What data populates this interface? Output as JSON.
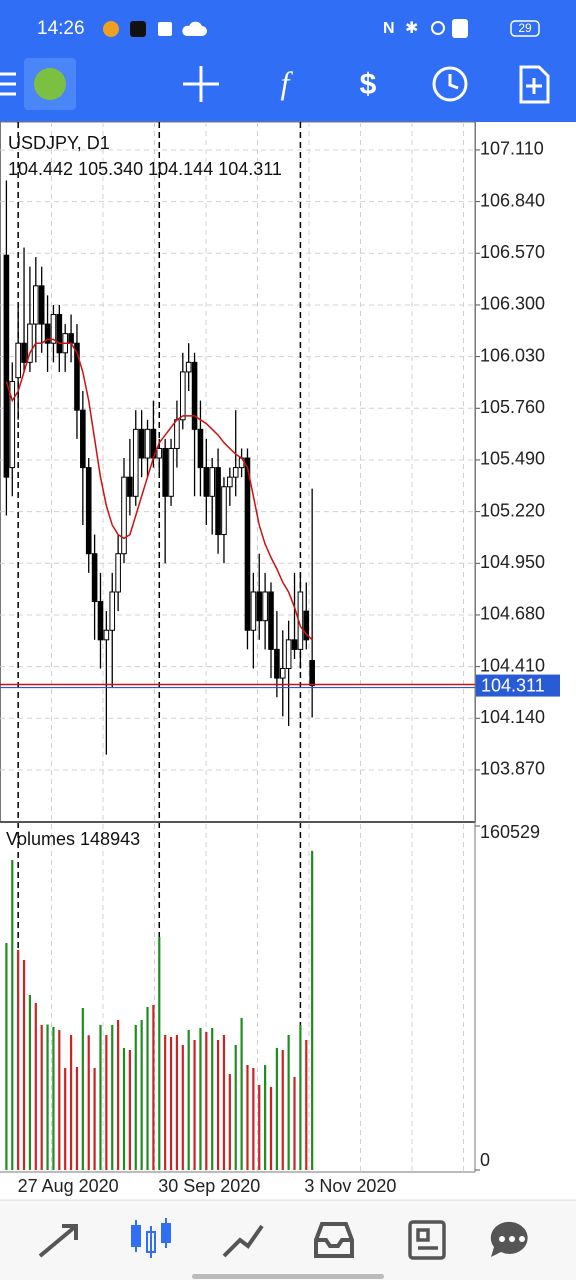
{
  "status_bar": {
    "time": "14:26",
    "battery": "29"
  },
  "chart_data": [
    {
      "type": "candlestick",
      "title": "USDJPY, D1",
      "ohlc_text": "104.442 105.340 104.144 104.311",
      "categories": [
        null,
        null,
        "27 Aug 2020",
        null,
        null,
        null,
        null,
        null,
        null,
        null,
        null,
        null,
        null,
        null,
        null,
        null,
        null,
        null,
        null,
        null,
        null,
        null,
        null,
        null,
        null,
        null,
        "30 Sep 2020",
        null,
        null,
        null,
        null,
        null,
        null,
        null,
        null,
        null,
        null,
        null,
        null,
        null,
        null,
        null,
        null,
        null,
        null,
        null,
        null,
        null,
        null,
        null,
        "3 Nov 2020",
        null,
        null
      ],
      "open": [
        106.56,
        105.45,
        105.92,
        106.1,
        106.0,
        106.2,
        106.4,
        106.2,
        106.1,
        106.25,
        106.05,
        106.15,
        106.1,
        105.75,
        105.45,
        105.0,
        104.75,
        104.55,
        104.6,
        104.8,
        105.0,
        105.4,
        105.3,
        105.65,
        105.5,
        105.65,
        105.5,
        105.55,
        105.3,
        105.55,
        105.7,
        105.95,
        106.0,
        105.65,
        105.45,
        105.3,
        105.45,
        105.1,
        105.35,
        105.4,
        105.45,
        105.5,
        104.6,
        104.8,
        104.65,
        104.8,
        104.5,
        104.35,
        104.4,
        104.55,
        104.5,
        104.7,
        104.442
      ],
      "high": [
        106.95,
        106.0,
        106.3,
        106.6,
        106.5,
        106.55,
        106.5,
        106.35,
        106.3,
        106.3,
        106.2,
        106.25,
        106.2,
        105.85,
        105.5,
        105.1,
        104.9,
        104.7,
        104.9,
        105.1,
        105.5,
        105.6,
        105.75,
        105.75,
        105.7,
        105.8,
        105.6,
        105.6,
        105.6,
        105.8,
        106.05,
        106.1,
        106.05,
        105.8,
        105.6,
        105.5,
        105.55,
        105.4,
        105.45,
        105.75,
        105.55,
        105.55,
        104.9,
        105.0,
        104.9,
        104.85,
        104.7,
        104.6,
        104.65,
        104.9,
        104.9,
        104.85,
        105.34
      ],
      "low": [
        105.2,
        105.3,
        105.7,
        105.95,
        105.95,
        106.0,
        106.05,
        105.95,
        106.0,
        105.95,
        105.95,
        106.0,
        105.6,
        105.15,
        104.9,
        104.55,
        104.4,
        103.95,
        104.3,
        104.7,
        104.95,
        105.2,
        105.25,
        105.4,
        105.4,
        105.45,
        105.4,
        104.95,
        105.25,
        105.45,
        105.65,
        105.85,
        105.3,
        105.3,
        105.15,
        105.1,
        105.0,
        104.95,
        105.25,
        105.3,
        105.4,
        104.5,
        104.4,
        104.55,
        104.5,
        104.35,
        104.25,
        104.15,
        104.1,
        104.45,
        104.4,
        104.5,
        104.144
      ],
      "close": [
        105.4,
        105.9,
        106.1,
        106.0,
        106.2,
        106.4,
        106.2,
        106.1,
        106.25,
        106.05,
        106.15,
        106.1,
        105.75,
        105.45,
        105.0,
        104.75,
        104.55,
        104.6,
        104.8,
        105.0,
        105.4,
        105.3,
        105.65,
        105.5,
        105.65,
        105.5,
        105.55,
        105.3,
        105.55,
        105.7,
        105.95,
        106.0,
        105.65,
        105.45,
        105.3,
        105.45,
        105.1,
        105.35,
        105.4,
        105.45,
        105.5,
        104.6,
        104.8,
        104.65,
        104.8,
        104.5,
        104.35,
        104.4,
        104.55,
        104.5,
        104.8,
        104.55,
        104.311
      ],
      "ma_values": [
        105.9,
        105.8,
        105.85,
        105.95,
        106.05,
        106.1,
        106.1,
        106.12,
        106.12,
        106.1,
        106.1,
        106.1,
        106.05,
        105.95,
        105.8,
        105.6,
        105.4,
        105.25,
        105.15,
        105.1,
        105.08,
        105.1,
        105.2,
        105.3,
        105.4,
        105.5,
        105.58,
        105.62,
        105.66,
        105.7,
        105.72,
        105.72,
        105.72,
        105.7,
        105.68,
        105.65,
        105.62,
        105.58,
        105.55,
        105.52,
        105.5,
        105.45,
        105.3,
        105.15,
        105.05,
        104.98,
        104.92,
        104.85,
        104.8,
        104.72,
        104.62,
        104.58,
        104.55
      ],
      "ma_color": "#cc1111",
      "up_color": "#ffffff",
      "down_color": "#000000",
      "wick_color": "#000000",
      "bid": 104.311,
      "bid_color": "#cc1111",
      "ask_color": "#2a5bd7",
      "ylim": [
        103.598,
        107.256
      ],
      "yticks": [
        {
          "value": 107.11,
          "label": "107.110"
        },
        {
          "value": 106.84,
          "label": "106.840"
        },
        {
          "value": 106.57,
          "label": "106.570"
        },
        {
          "value": 106.3,
          "label": "106.300"
        },
        {
          "value": 106.03,
          "label": "106.030"
        },
        {
          "value": 105.76,
          "label": "105.760"
        },
        {
          "value": 105.49,
          "label": "105.490"
        },
        {
          "value": 105.22,
          "label": "105.220"
        },
        {
          "value": 104.95,
          "label": "104.950"
        },
        {
          "value": 104.68,
          "label": "104.680"
        },
        {
          "value": 104.41,
          "label": "104.410"
        },
        {
          "value": 104.14,
          "label": "104.140"
        },
        {
          "value": 103.87,
          "label": "103.870"
        }
      ],
      "grid": true
    },
    {
      "type": "volume",
      "title": "Volumes 148943",
      "values": [
        105930,
        144662,
        102663,
        97997,
        81664,
        77931,
        67664,
        67900,
        66731,
        65331,
        47598,
        62998,
        48065,
        75597,
        62900,
        47600,
        67700,
        63000,
        67660,
        70000,
        56930,
        56000,
        67650,
        70010,
        76060,
        77000,
        108730,
        63010,
        62060,
        62990,
        58330,
        65330,
        60660,
        66260,
        64400,
        66270,
        60670,
        63020,
        44800,
        58330,
        70930,
        49000,
        47590,
        39670,
        49010,
        38730,
        56930,
        56010,
        63000,
        43400,
        67670,
        60660,
        148943
      ],
      "colors": [
        "#1e8c1e",
        "#1e8c1e",
        "#cc2222",
        "#cc2222",
        "#1e8c1e",
        "#cc2222",
        "#cc2222",
        "#1e8c1e",
        "#1e8c1e",
        "#cc2222",
        "#cc2222",
        "#cc2222",
        "#cc2222",
        "#1e8c1e",
        "#cc2222",
        "#cc2222",
        "#1e8c1e",
        "#cc2222",
        "#1e8c1e",
        "#cc2222",
        "#1e8c1e",
        "#cc2222",
        "#1e8c1e",
        "#1e8c1e",
        "#1e8c1e",
        "#cc2222",
        "#1e8c1e",
        "#cc2222",
        "#cc2222",
        "#cc2222",
        "#cc2222",
        "#1e8c1e",
        "#cc2222",
        "#1e8c1e",
        "#cc2222",
        "#1e8c1e",
        "#cc2222",
        "#cc2222",
        "#cc2222",
        "#1e8c1e",
        "#1e8c1e",
        "#cc2222",
        "#cc2222",
        "#cc2222",
        "#1e8c1e",
        "#cc2222",
        "#1e8c1e",
        "#cc2222",
        "#1e8c1e",
        "#cc2222",
        "#1e8c1e",
        "#cc2222",
        "#1e8c1e"
      ],
      "ylim": [
        0,
        160529
      ],
      "yticks": [
        0,
        160529
      ]
    }
  ]
}
